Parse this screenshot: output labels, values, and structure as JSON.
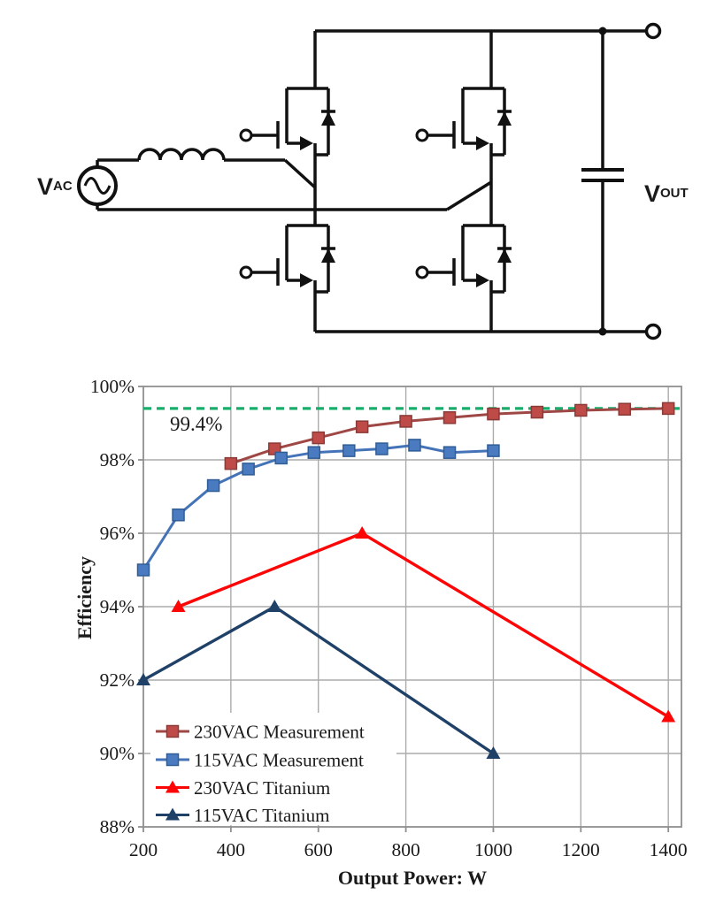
{
  "page": {
    "background": "#ffffff"
  },
  "circuit": {
    "source_label": "V",
    "source_label_sub": "AC",
    "output_label": "V",
    "output_label_sub": "OUT",
    "line_color": "#111111"
  },
  "chart_data": {
    "type": "line",
    "title": "",
    "xlabel": "Output Power: W",
    "ylabel": "Efficiency",
    "xlim": [
      200,
      1430
    ],
    "ylim": [
      88,
      100
    ],
    "x_ticks": [
      200,
      400,
      600,
      800,
      1000,
      1200,
      1400
    ],
    "x_tick_labels": [
      "200",
      "400",
      "600",
      "800",
      "1000",
      "1200",
      "1400"
    ],
    "y_ticks": [
      88,
      90,
      92,
      94,
      96,
      98,
      100
    ],
    "y_tick_labels": [
      "88%",
      "90%",
      "92%",
      "94%",
      "96%",
      "98%",
      "100%"
    ],
    "grid": true,
    "grid_color": "#ababab",
    "border_color": "#8f8f8f",
    "legend_position": "bottom-left-inside",
    "reference_line": {
      "value": 99.4,
      "label": "99.4%",
      "color": "#17ad6b",
      "style": "dashed"
    },
    "series": [
      {
        "name": "230VAC Measurement",
        "marker": "square",
        "line_color": "#9f4745",
        "marker_fill": "#be4b48",
        "marker_stroke": "#8a3a37",
        "x": [
          400,
          500,
          600,
          700,
          800,
          900,
          1000,
          1100,
          1200,
          1300,
          1400
        ],
        "y": [
          97.9,
          98.3,
          98.6,
          98.9,
          99.05,
          99.15,
          99.25,
          99.3,
          99.35,
          99.38,
          99.4
        ]
      },
      {
        "name": "115VAC Measurement",
        "marker": "square",
        "line_color": "#4473b7",
        "marker_fill": "#4a7bc1",
        "marker_stroke": "#315d96",
        "x": [
          200,
          280,
          360,
          440,
          515,
          590,
          670,
          745,
          820,
          900,
          1000
        ],
        "y": [
          95.0,
          96.5,
          97.3,
          97.75,
          98.05,
          98.2,
          98.25,
          98.3,
          98.4,
          98.2,
          98.25
        ]
      },
      {
        "name": "230VAC Titanium",
        "marker": "triangle",
        "line_color": "#fe0505",
        "marker_fill": "#fe0505",
        "marker_stroke": "#d40000",
        "x": [
          280,
          700,
          1400
        ],
        "y": [
          94,
          96,
          91
        ]
      },
      {
        "name": "115VAC Titanium",
        "marker": "triangle",
        "line_color": "#1f4168",
        "marker_fill": "#1f4168",
        "marker_stroke": "#16304d",
        "x": [
          200,
          500,
          1000
        ],
        "y": [
          92,
          94,
          90
        ]
      }
    ]
  }
}
